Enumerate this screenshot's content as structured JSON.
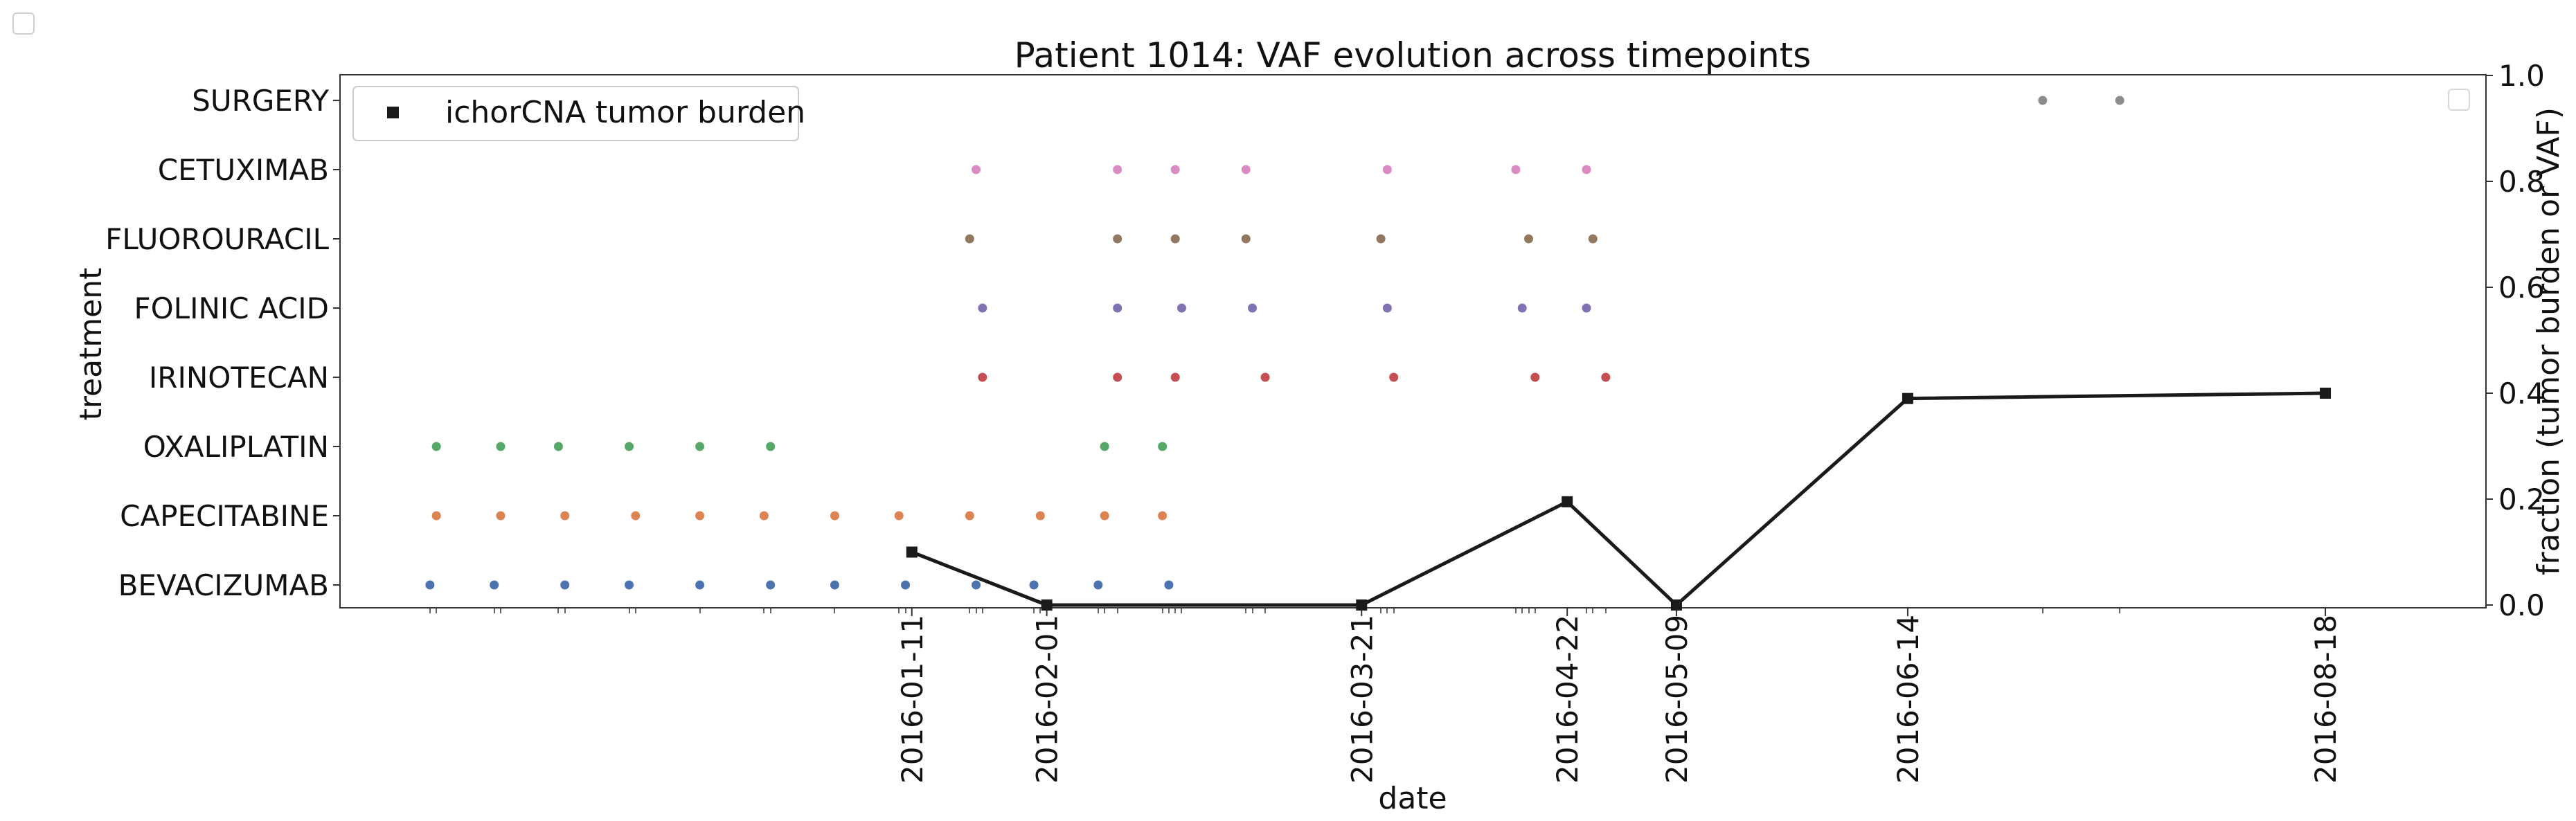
{
  "chart_data": {
    "type": "scatter",
    "title": "Patient 1014: VAF evolution across timepoints",
    "xlabel": "date",
    "ylabel_left": "treatment",
    "ylabel_right": "fraction (tumor burden or VAF)",
    "treatments": [
      "BEVACIZUMAB",
      "CAPECITABINE",
      "OXALIPLATIN",
      "IRINOTECAN",
      "FOLINIC ACID",
      "FLUOROURACIL",
      "CETUXIMAB",
      "SURGERY"
    ],
    "treatment_colors": [
      "#4c72b0",
      "#dd8452",
      "#55a868",
      "#c44e52",
      "#8172b3",
      "#937860",
      "#da8bc3",
      "#8c8c8c"
    ],
    "xlim": [
      "2015-10-14",
      "2016-09-12"
    ],
    "xticks": [
      "2016-01-11",
      "2016-02-01",
      "2016-03-21",
      "2016-04-22",
      "2016-05-09",
      "2016-06-14",
      "2016-08-18"
    ],
    "right_ylim": [
      0,
      1.0
    ],
    "right_yticks": [
      "0.0",
      "0.2",
      "0.4",
      "0.6",
      "0.8",
      "1.0"
    ],
    "legend": {
      "label": "ichorCNA tumor burden",
      "placement": "upper-left"
    },
    "tumor_burden": {
      "name": "ichorCNA tumor burden",
      "x": [
        "2016-01-11",
        "2016-02-01",
        "2016-03-21",
        "2016-04-22",
        "2016-05-09",
        "2016-06-14",
        "2016-08-18"
      ],
      "y": [
        0.1,
        0.0,
        0.0,
        0.195,
        0.0,
        0.39,
        0.4
      ]
    },
    "treatment_events": [
      {
        "treatment": "BEVACIZUMAB",
        "dates": [
          "2015-10-28",
          "2015-11-07",
          "2015-11-18",
          "2015-11-28",
          "2015-12-09",
          "2015-12-20",
          "2015-12-30",
          "2016-01-10",
          "2016-01-21",
          "2016-01-30",
          "2016-02-09",
          "2016-02-20"
        ]
      },
      {
        "treatment": "CAPECITABINE",
        "dates": [
          "2015-10-29",
          "2015-11-08",
          "2015-11-18",
          "2015-11-29",
          "2015-12-09",
          "2015-12-19",
          "2015-12-30",
          "2016-01-09",
          "2016-01-20",
          "2016-01-31",
          "2016-02-10",
          "2016-02-19"
        ]
      },
      {
        "treatment": "OXALIPLATIN",
        "dates": [
          "2015-10-29",
          "2015-11-08",
          "2015-11-17",
          "2015-11-28",
          "2015-12-09",
          "2015-12-20",
          "2016-02-10",
          "2016-02-19"
        ]
      },
      {
        "treatment": "IRINOTECAN",
        "dates": [
          "2016-01-22",
          "2016-02-12",
          "2016-02-21",
          "2016-03-06",
          "2016-03-26",
          "2016-04-17",
          "2016-04-28"
        ]
      },
      {
        "treatment": "FOLINIC ACID",
        "dates": [
          "2016-01-22",
          "2016-02-12",
          "2016-02-22",
          "2016-03-04",
          "2016-03-25",
          "2016-04-15",
          "2016-04-25"
        ]
      },
      {
        "treatment": "FLUOROURACIL",
        "dates": [
          "2016-01-20",
          "2016-02-12",
          "2016-02-21",
          "2016-03-03",
          "2016-03-24",
          "2016-04-16",
          "2016-04-26"
        ]
      },
      {
        "treatment": "CETUXIMAB",
        "dates": [
          "2016-01-21",
          "2016-02-12",
          "2016-02-21",
          "2016-03-03",
          "2016-03-25",
          "2016-04-14",
          "2016-04-25"
        ]
      },
      {
        "treatment": "SURGERY",
        "dates": [
          "2016-07-05",
          "2016-07-17"
        ]
      }
    ]
  }
}
